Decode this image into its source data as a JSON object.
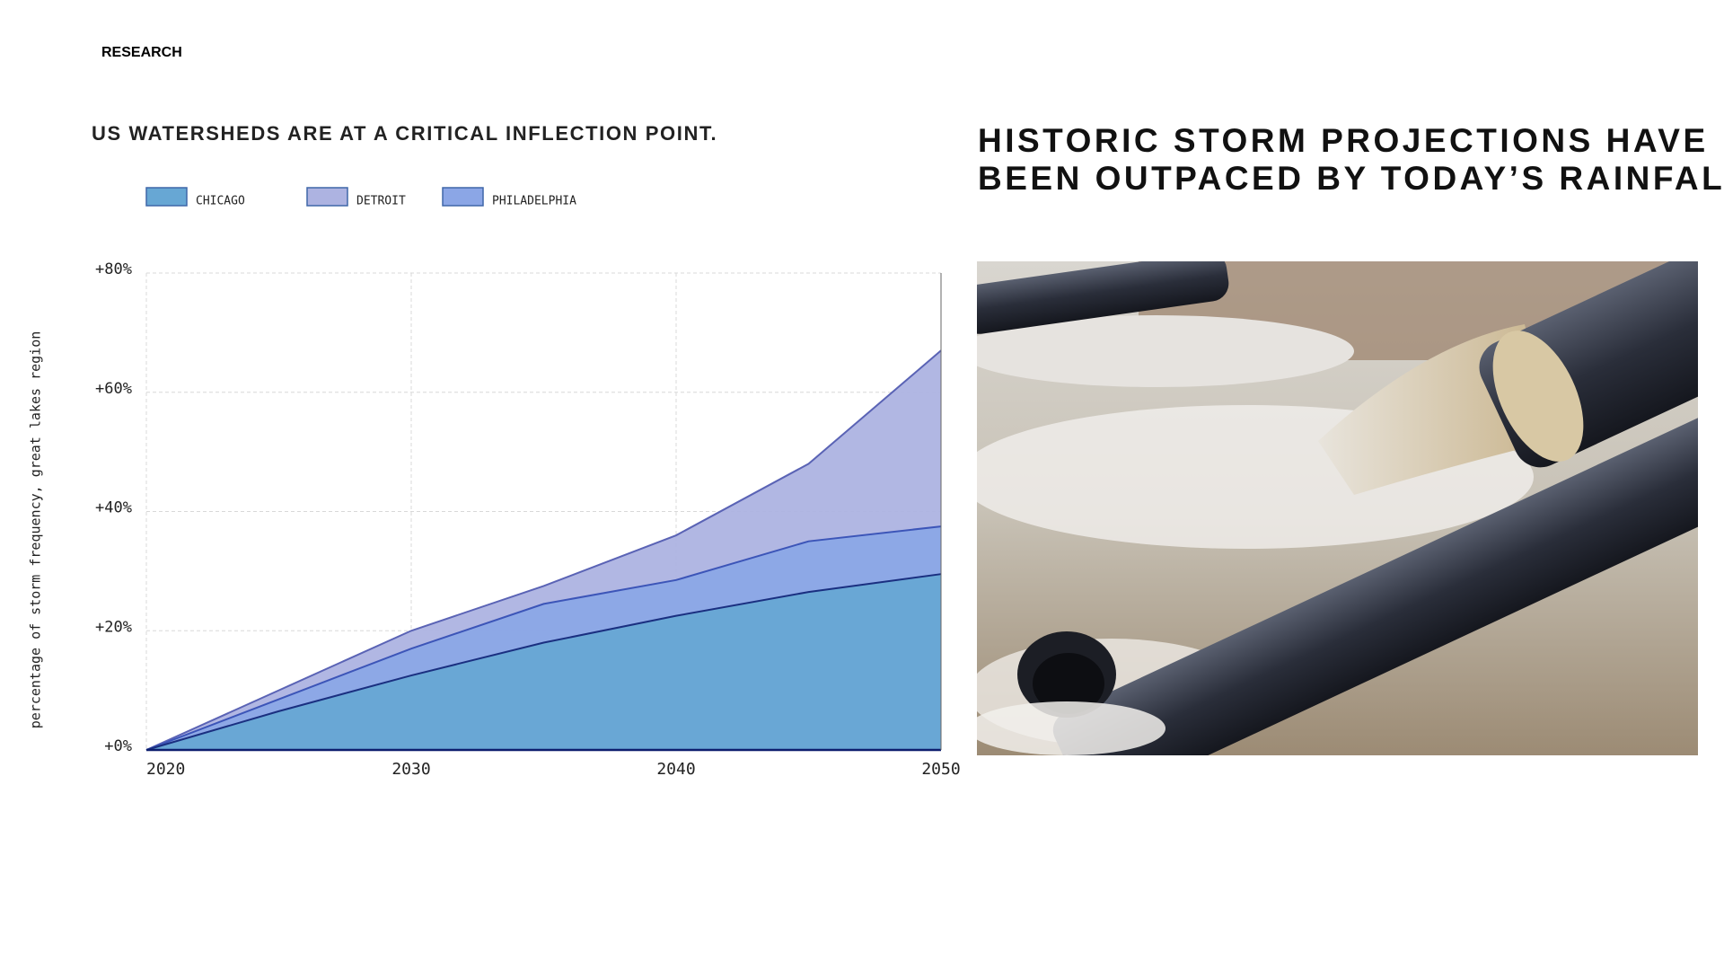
{
  "section": "RESEARCH",
  "headline": [
    "HISTORIC STORM PROJECTIONS HAVE",
    "BEEN OUTPACED BY TODAY’S RAINFALL"
  ],
  "chart_data": {
    "type": "area",
    "title": "US WATERSHEDS ARE AT A CRITICAL INFLECTION POINT.",
    "y_label": "percentage of storm frequency, great lakes region",
    "x": [
      2020,
      2025,
      2030,
      2035,
      2040,
      2045,
      2050
    ],
    "series": [
      {
        "name": "CHICAGO",
        "color": "#67a7d4",
        "values": [
          0,
          6.5,
          12.5,
          18,
          22.5,
          26.5,
          29.5
        ]
      },
      {
        "name": "DETROIT",
        "color": "#adb3e1",
        "values": [
          0,
          10,
          20,
          27.5,
          36,
          48,
          67
        ]
      },
      {
        "name": "PHILADELPHIA",
        "color": "#8ba6e6",
        "values": [
          0,
          8.5,
          17,
          24.5,
          28.5,
          35,
          37.5
        ]
      }
    ],
    "xlim": [
      2020,
      2050
    ],
    "xticks": [
      2020,
      2030,
      2040,
      2050
    ],
    "ylim": [
      0,
      80
    ],
    "yticks": [
      {
        "value": 0,
        "label": "+0%"
      },
      {
        "value": 20,
        "label": "+20%"
      },
      {
        "value": 40,
        "label": "+40%"
      },
      {
        "value": 60,
        "label": "+60%"
      },
      {
        "value": 80,
        "label": "+80%"
      }
    ],
    "grid": true
  }
}
